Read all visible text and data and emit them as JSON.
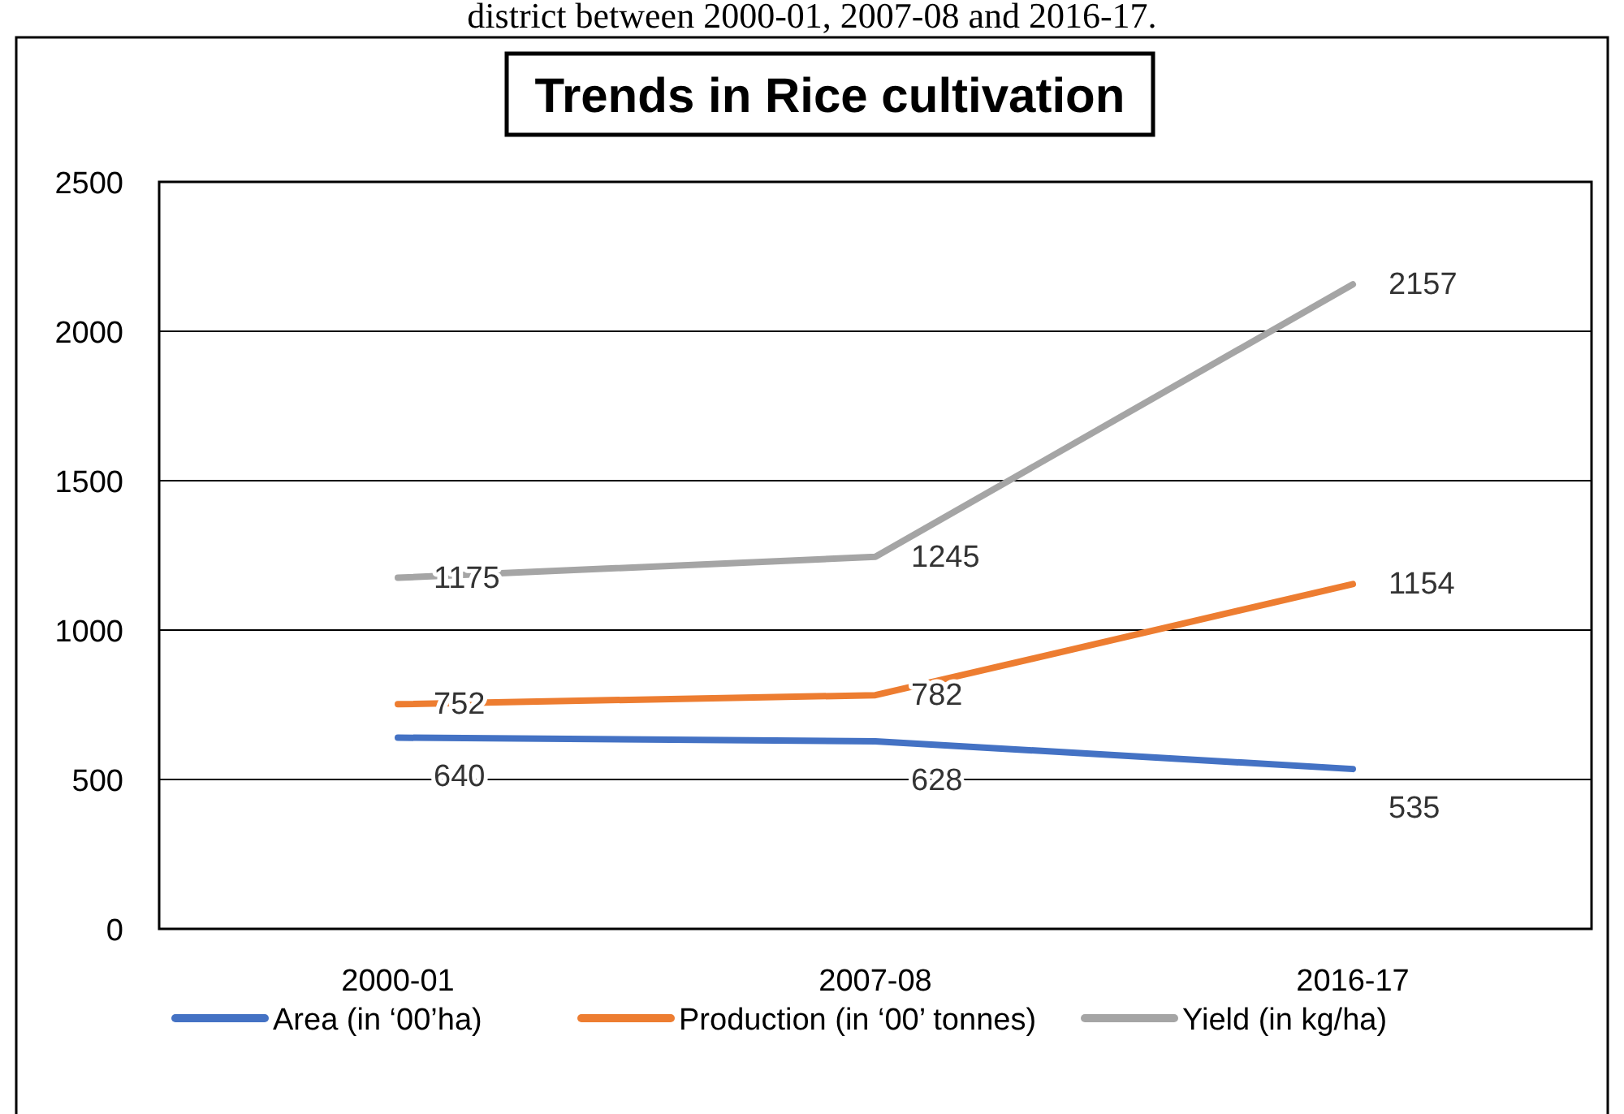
{
  "chart_data": {
    "type": "line",
    "title": "Trends in Rice cultivation",
    "annotations": [
      "district between 2000-01, 2007-08 and 2016-17."
    ],
    "categories": [
      "2000-01",
      "2007-08",
      "2016-17"
    ],
    "series": [
      {
        "name": "Area (in ‘00’ha)",
        "color": "#4472c4",
        "values": [
          640,
          628,
          535
        ]
      },
      {
        "name": "Production (in ‘00’ tonnes)",
        "color": "#ed7d31",
        "values": [
          752,
          782,
          1154
        ]
      },
      {
        "name": "Yield (in kg/ha)",
        "color": "#a5a5a5",
        "values": [
          1175,
          1245,
          2157
        ]
      }
    ],
    "ylim": [
      0,
      2500
    ],
    "yticks": [
      0,
      500,
      1000,
      1500,
      2000,
      2500
    ],
    "grid": "y",
    "legend": "bottom",
    "data_labels": true,
    "marker": "none",
    "line_style": "solid"
  }
}
